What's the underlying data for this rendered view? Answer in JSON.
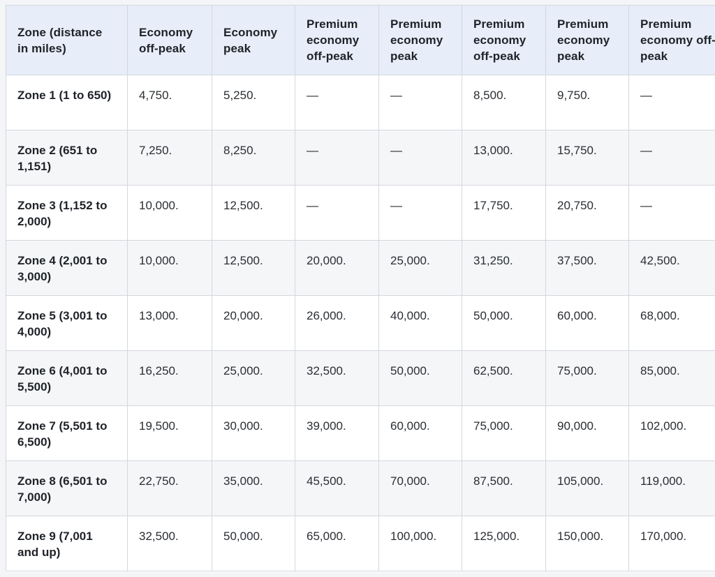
{
  "table": {
    "headers": [
      "Zone (distance in miles)",
      "Economy off-peak",
      "Economy peak",
      "Premium economy off-peak",
      "Premium economy peak",
      "Premium economy off-peak",
      "Premium economy peak",
      "Premium economy off-peak"
    ],
    "rows": [
      [
        "Zone 1 (1 to 650)",
        "4,750.",
        "5,250.",
        "—",
        "—",
        "8,500.",
        "9,750.",
        "—"
      ],
      [
        "Zone 2 (651 to 1,151)",
        "7,250.",
        "8,250.",
        "—",
        "—",
        "13,000.",
        "15,750.",
        "—"
      ],
      [
        "Zone 3 (1,152 to 2,000)",
        "10,000.",
        "12,500.",
        "—",
        "—",
        "17,750.",
        "20,750.",
        "—"
      ],
      [
        "Zone 4 (2,001 to 3,000)",
        "10,000.",
        "12,500.",
        "20,000.",
        "25,000.",
        "31,250.",
        "37,500.",
        "42,500."
      ],
      [
        "Zone 5 (3,001 to 4,000)",
        "13,000.",
        "20,000.",
        "26,000.",
        "40,000.",
        "50,000.",
        "60,000.",
        "68,000."
      ],
      [
        "Zone 6 (4,001 to 5,500)",
        "16,250.",
        "25,000.",
        "32,500.",
        "50,000.",
        "62,500.",
        "75,000.",
        "85,000."
      ],
      [
        "Zone 7 (5,501 to 6,500)",
        "19,500.",
        "30,000.",
        "39,000.",
        "60,000.",
        "75,000.",
        "90,000.",
        "102,000."
      ],
      [
        "Zone 8 (6,501 to 7,000)",
        "22,750.",
        "35,000.",
        "45,500.",
        "70,000.",
        "87,500.",
        "105,000.",
        "119,000."
      ],
      [
        "Zone 9 (7,001 and up)",
        "32,500.",
        "50,000.",
        "65,000.",
        "100,000.",
        "125,000.",
        "150,000.",
        "170,000."
      ]
    ]
  },
  "colors": {
    "header_bg": "#e7eef9",
    "row_alt_bg": "#f5f6f8",
    "border": "#d3d7de",
    "page_bg": "#f4f5f7"
  }
}
